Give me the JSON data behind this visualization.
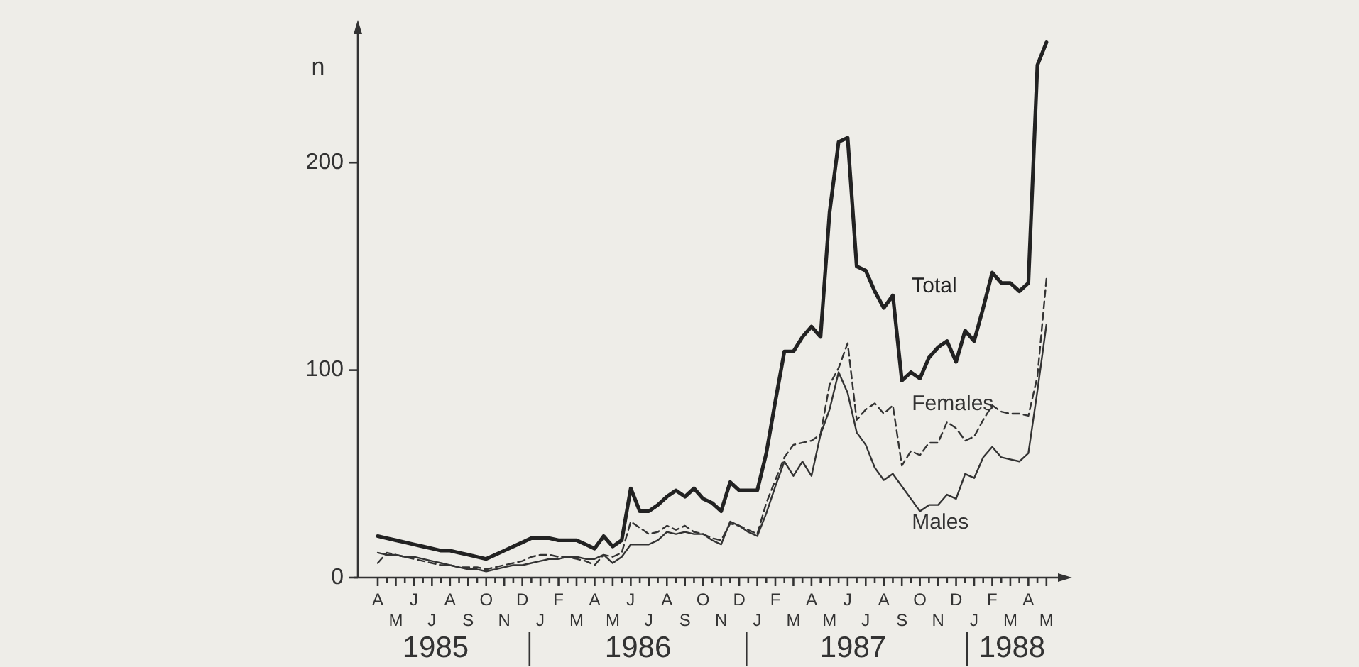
{
  "chart_data": {
    "type": "line",
    "ylabel": "n",
    "ylim": [
      0,
      265
    ],
    "yticks": [
      0,
      100,
      200
    ],
    "categories": [
      "A",
      null,
      "M",
      null,
      "J",
      null,
      "J",
      null,
      "A",
      null,
      "S",
      null,
      "O",
      null,
      "N",
      null,
      "D",
      null,
      "J",
      null,
      "F",
      null,
      "M",
      null,
      "A",
      null,
      "M",
      null,
      "J",
      null,
      "J",
      null,
      "A",
      null,
      "S",
      null,
      "O",
      null,
      "N",
      null,
      "D",
      null,
      "J",
      null,
      "F",
      null,
      "M",
      null,
      "A",
      null,
      "M",
      null,
      "J",
      null,
      "J",
      null,
      "A",
      null,
      "S",
      null,
      "O",
      null,
      "N",
      null,
      "D",
      null,
      "J",
      null,
      "F",
      null,
      "M",
      null,
      "A",
      null,
      "M"
    ],
    "annotations": [
      "1985",
      "1986",
      "1987",
      "1988"
    ],
    "grid": false,
    "legend": false,
    "marker": "none",
    "series": [
      {
        "name": "Total",
        "color": "#222222",
        "line_style": "solid",
        "values": [
          20,
          19,
          18,
          17,
          16,
          15,
          14,
          13,
          13,
          12,
          11,
          10,
          9,
          11,
          13,
          15,
          17,
          19,
          19,
          19,
          18,
          18,
          18,
          16,
          14,
          20,
          15,
          18,
          43,
          32,
          32,
          35,
          39,
          42,
          39,
          43,
          38,
          36,
          32,
          46,
          42,
          42,
          42,
          60,
          85,
          109,
          109,
          116,
          121,
          116,
          176,
          210,
          212,
          150,
          148,
          138,
          130,
          136,
          95,
          99,
          96,
          106,
          111,
          114,
          104,
          119,
          114,
          130,
          147,
          142,
          142,
          138,
          142,
          247,
          258
        ]
      },
      {
        "name": "Females",
        "color": "#333333",
        "line_style": "dashed",
        "values": [
          7,
          12,
          11,
          10,
          9,
          8,
          7,
          6,
          6,
          5,
          5,
          5,
          4,
          5,
          6,
          7,
          8,
          10,
          11,
          11,
          10,
          10,
          9,
          8,
          6,
          11,
          10,
          12,
          27,
          24,
          21,
          22,
          25,
          23,
          25,
          22,
          21,
          19,
          18,
          26,
          25,
          23,
          21,
          36,
          47,
          58,
          64,
          65,
          66,
          69,
          93,
          101,
          113,
          76,
          81,
          84,
          79,
          83,
          54,
          61,
          59,
          65,
          65,
          75,
          72,
          66,
          68,
          76,
          83,
          80,
          79,
          79,
          78,
          97,
          144
        ]
      },
      {
        "name": "Males",
        "color": "#333333",
        "line_style": "solid",
        "values": [
          12,
          11,
          11,
          10,
          10,
          9,
          8,
          7,
          6,
          5,
          4,
          4,
          3,
          4,
          5,
          6,
          6,
          7,
          8,
          9,
          9,
          10,
          10,
          9,
          9,
          11,
          7,
          10,
          16,
          16,
          16,
          18,
          22,
          21,
          22,
          21,
          21,
          18,
          16,
          27,
          25,
          22,
          20,
          31,
          44,
          56,
          49,
          56,
          49,
          69,
          81,
          99,
          89,
          70,
          64,
          53,
          47,
          50,
          44,
          38,
          32,
          35,
          35,
          40,
          38,
          50,
          48,
          58,
          63,
          58,
          57,
          56,
          60,
          90,
          122
        ]
      }
    ]
  }
}
